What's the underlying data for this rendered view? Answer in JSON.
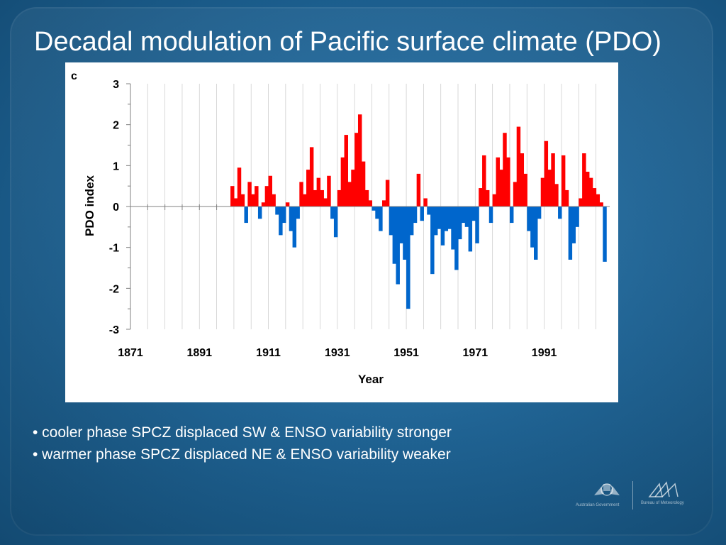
{
  "slide": {
    "title": "Decadal modulation of Pacific surface climate (PDO)",
    "bullets": [
      "• cooler phase SPCZ displaced SW & ENSO variability stronger",
      "• warmer phase SPCZ displaced NE & ENSO variability weaker"
    ]
  },
  "colors": {
    "positive": "#ff0000",
    "negative": "#0066cc",
    "background": "#1e6496"
  },
  "logos": {
    "left_caption": "Australian Government",
    "right_caption": "Bureau of Meteorology"
  },
  "chart_data": {
    "type": "area",
    "panel_label": "c",
    "title": "",
    "xlabel": "Year",
    "ylabel": "PDO index",
    "xlim": [
      1871,
      2010
    ],
    "ylim": [
      -3,
      3
    ],
    "x_ticks": [
      1871,
      1891,
      1911,
      1931,
      1951,
      1971,
      1991
    ],
    "y_ticks": [
      3,
      2,
      1,
      0,
      -1,
      -2,
      -3
    ],
    "grid": "vertical",
    "x": [
      1900,
      1901,
      1902,
      1903,
      1904,
      1905,
      1906,
      1907,
      1908,
      1909,
      1910,
      1911,
      1912,
      1913,
      1914,
      1915,
      1916,
      1917,
      1918,
      1919,
      1920,
      1921,
      1922,
      1923,
      1924,
      1925,
      1926,
      1927,
      1928,
      1929,
      1930,
      1931,
      1932,
      1933,
      1934,
      1935,
      1936,
      1937,
      1938,
      1939,
      1940,
      1941,
      1942,
      1943,
      1944,
      1945,
      1946,
      1947,
      1948,
      1949,
      1950,
      1951,
      1952,
      1953,
      1954,
      1955,
      1956,
      1957,
      1958,
      1959,
      1960,
      1961,
      1962,
      1963,
      1964,
      1965,
      1966,
      1967,
      1968,
      1969,
      1970,
      1971,
      1972,
      1973,
      1974,
      1975,
      1976,
      1977,
      1978,
      1979,
      1980,
      1981,
      1982,
      1983,
      1984,
      1985,
      1986,
      1987,
      1988,
      1989,
      1990,
      1991,
      1992,
      1993,
      1994,
      1995,
      1996,
      1997,
      1998,
      1999,
      2000,
      2001,
      2002,
      2003,
      2004,
      2005,
      2006,
      2007,
      2008
    ],
    "values": [
      0.5,
      0.2,
      0.95,
      0.3,
      -0.4,
      0.6,
      0.3,
      0.5,
      -0.3,
      0.1,
      0.5,
      0.75,
      0.3,
      -0.2,
      -0.7,
      -0.4,
      0.1,
      -0.6,
      -1.0,
      -0.3,
      0.6,
      0.3,
      0.9,
      1.45,
      0.4,
      0.7,
      0.4,
      0.2,
      0.75,
      -0.3,
      -0.75,
      0.4,
      1.2,
      1.75,
      0.6,
      0.9,
      1.8,
      2.25,
      1.1,
      0.4,
      0.15,
      -0.1,
      -0.3,
      -0.6,
      0.15,
      0.65,
      -0.7,
      -1.4,
      -1.9,
      -0.9,
      -1.3,
      -2.5,
      -0.7,
      -0.4,
      0.8,
      -0.35,
      0.2,
      -0.2,
      -1.65,
      -0.7,
      -0.55,
      -0.95,
      -0.6,
      -0.55,
      -1.05,
      -1.55,
      -0.8,
      -0.4,
      -0.5,
      -1.1,
      -0.35,
      -0.9,
      0.45,
      1.25,
      0.4,
      -0.4,
      0.3,
      1.2,
      0.9,
      1.8,
      1.2,
      -0.4,
      0.6,
      1.95,
      1.3,
      0.8,
      -0.6,
      -1.0,
      -1.3,
      -0.3,
      0.7,
      1.6,
      0.9,
      1.3,
      0.55,
      -0.3,
      1.25,
      0.4,
      -1.3,
      -0.9,
      -0.5,
      0.2,
      1.3,
      0.85,
      0.7,
      0.45,
      0.3,
      0.1,
      -1.35
    ]
  }
}
